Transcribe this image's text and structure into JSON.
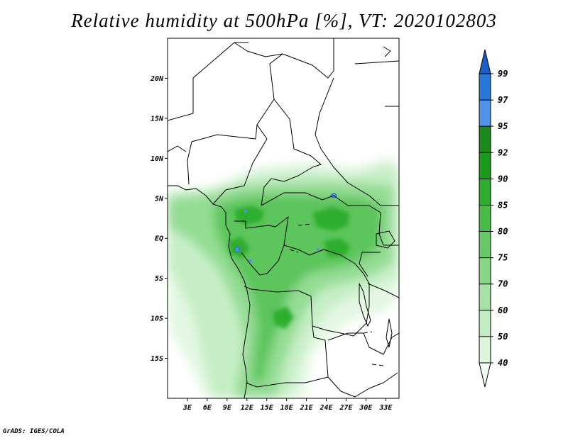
{
  "title": "Relative humidity at 500hPa [%], VT: 2020102803",
  "footer": "GrADS: IGES/COLA",
  "map": {
    "lat_labels": [
      "20N",
      "15N",
      "10N",
      "5N",
      "EQ",
      "5S",
      "10S",
      "15S"
    ],
    "lat_values": [
      20,
      15,
      10,
      5,
      0,
      -5,
      -10,
      -15
    ],
    "lon_labels": [
      "3E",
      "6E",
      "9E",
      "12E",
      "15E",
      "18E",
      "21E",
      "24E",
      "27E",
      "30E",
      "33E"
    ],
    "lon_values": [
      3,
      6,
      9,
      12,
      15,
      18,
      21,
      24,
      27,
      30,
      33
    ],
    "lat_range": [
      -20,
      25
    ],
    "lon_range": [
      0,
      35
    ]
  },
  "colorbar": {
    "levels": [
      "40",
      "50",
      "60",
      "70",
      "75",
      "80",
      "85",
      "90",
      "92",
      "95",
      "97",
      "99"
    ],
    "colors": [
      "#f2fcf2",
      "#dcf5dc",
      "#c3ecc3",
      "#a6e2a6",
      "#86d686",
      "#66c966",
      "#48bb48",
      "#2ead2e",
      "#1a9a1a",
      "#1a8a1a",
      "#4f94e8",
      "#2878dc",
      "#1a5ec6"
    ],
    "unit": "%"
  }
}
